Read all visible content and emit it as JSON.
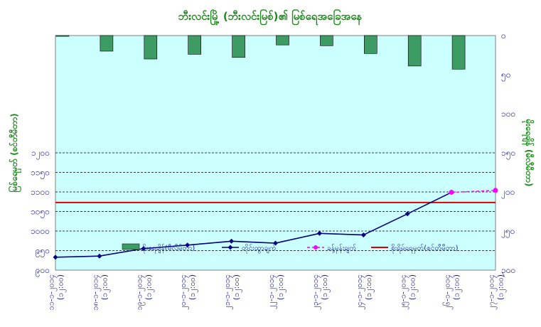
{
  "chart_data": {
    "type": "bar+line",
    "title": "ဘီးလင်းမြို့ (ဘီးလင်းမြစ်)၏ မြစ်ရေအခြေအနေ",
    "x_categories": [
      "၁၁-၁-၂၀၁၄\n(၁၂:၀၀)",
      "၁၈-၁-၂၀၁၄\n(၁၂:၀၀)",
      "၁၉-၁-၂၀၁၄\n(၁၂:၀၀)",
      "၂၀-၁-၂၀၁၄\n(၁၂:၀၀)",
      "၂၁-၁-၂၀၁၄\n(၁၂:၀၀)",
      "၂၂-၁-၂၀၁၄\n(၁၂:၀၀)",
      "၂၃-၁-၂၀၁၄\n(၁၂:၀၀)",
      "၂၄-၁-၂၀၁၄\n(၁၂:၀၀)",
      "၂၅-၁-၂၀၁၄\n(၁၂:၀၀)",
      "၂၆-၁-၂၀၁၄\n(၁၂:၀၀)",
      "၂၇-၁-၂၀၁၄\n(၁၂:၀၀)"
    ],
    "left_axis": {
      "label": "မြစ်ရေမှတ် (စင်တီမီတာ)",
      "range": [
        900,
        1500
      ],
      "ticks": [
        "၉၀၀",
        "၉၅၀",
        "၁၀၀၀",
        "၁၀၅၀",
        "၁၁၀၀",
        "၁၁၅၀",
        "၁၂၀၀"
      ],
      "tick_values": [
        900,
        950,
        1000,
        1050,
        1100,
        1150,
        1200
      ]
    },
    "right_axis": {
      "label": "မိုးရေချိန် (မီလီမီတာ)",
      "range": [
        0,
        300
      ],
      "reversed": true,
      "ticks": [
        "၀",
        "၅၀",
        "၁၀၀",
        "၁၅၀",
        "၂၀၀",
        "၂၅၀",
        "၃၀၀"
      ],
      "tick_values": [
        0,
        50,
        100,
        150,
        200,
        250,
        300
      ]
    },
    "series": [
      {
        "name": "မိုးရေချိန်(မီလီမီတာ)",
        "kind": "bar",
        "axis": "right",
        "color": "#3c9c64",
        "values": [
          1,
          20,
          30,
          24,
          28,
          12,
          13,
          23,
          39,
          43,
          null
        ]
      },
      {
        "name": "တိုင်းထွာချက်",
        "kind": "line",
        "axis": "left",
        "color": "#000080",
        "values": [
          933,
          936,
          955,
          964,
          974,
          969,
          994,
          990,
          1044,
          1099,
          null
        ]
      },
      {
        "name": "ခန့်မှန်းချက်",
        "kind": "line-dashed",
        "axis": "left",
        "color": "#ff00ff",
        "values": [
          null,
          null,
          null,
          null,
          null,
          null,
          null,
          null,
          null,
          1099,
          1104
        ]
      },
      {
        "name": "စိုးရိမ်ရေမှတ်(စင်တီမီတာ)",
        "kind": "hline",
        "axis": "left",
        "color": "#dd0000",
        "value": 1073
      }
    ],
    "grid": "horizontal-dashed",
    "legend_position": "bottom-inside",
    "plot_background": "#ccffff"
  }
}
